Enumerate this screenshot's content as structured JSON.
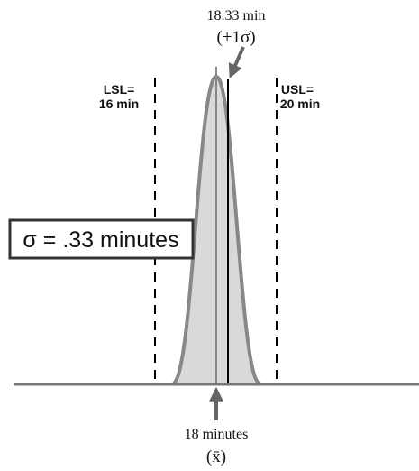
{
  "upper_label": {
    "value": "18.33 min",
    "sigma": "(+1σ)"
  },
  "lsl": {
    "line1": "LSL=",
    "line2": "16 min"
  },
  "usl": {
    "line1": "USL=",
    "line2": "20 min"
  },
  "sigma_box": "σ = .33 minutes",
  "mean_label": {
    "value": "18 minutes",
    "symbol": "(x̄)"
  }
}
